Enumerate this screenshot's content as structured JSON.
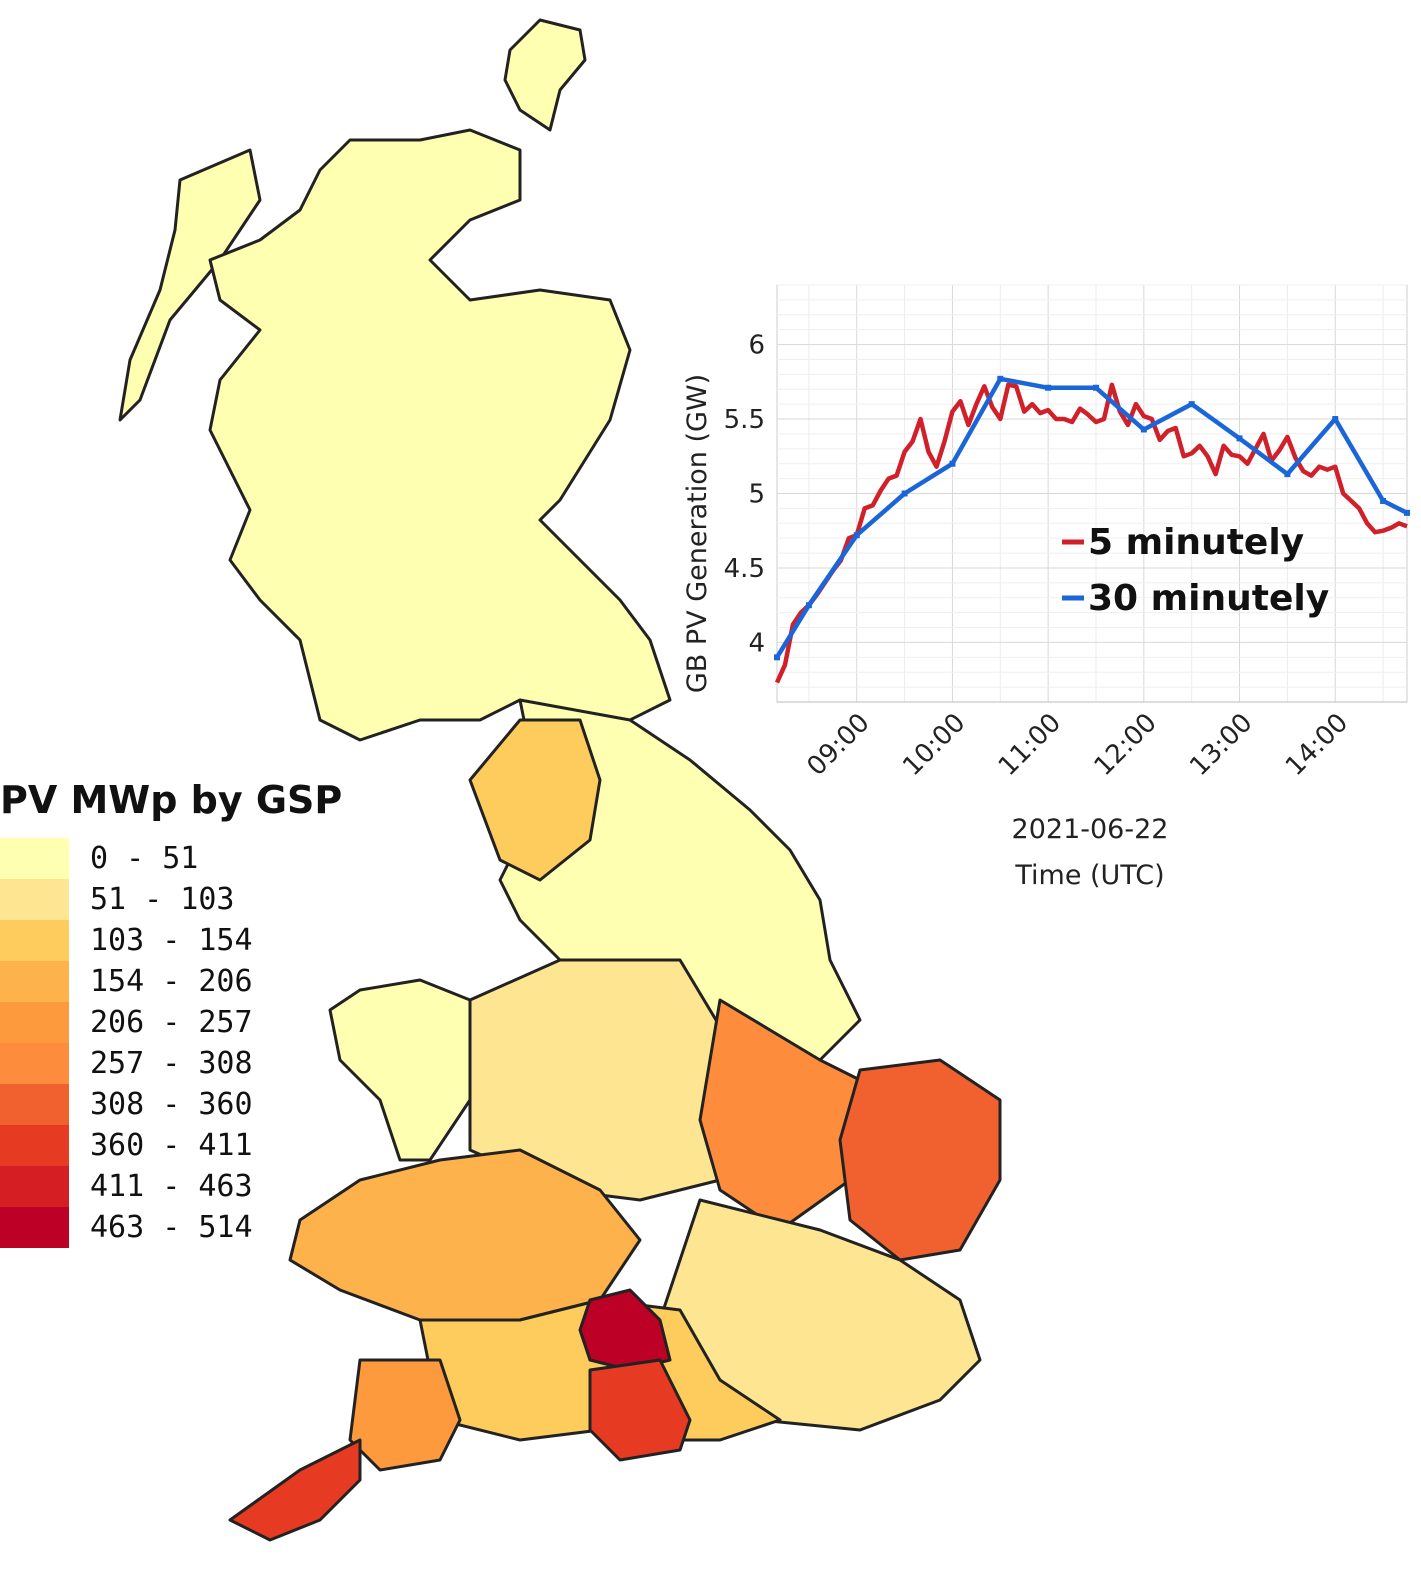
{
  "legend": {
    "title": "PV MWp by GSP",
    "bins": [
      {
        "label": "0 - 51",
        "color": "#ffffb2"
      },
      {
        "label": "51 - 103",
        "color": "#fee592"
      },
      {
        "label": "103 - 154",
        "color": "#fecc5c"
      },
      {
        "label": "154 - 206",
        "color": "#feb24c"
      },
      {
        "label": "206 - 257",
        "color": "#fd9a3e"
      },
      {
        "label": "257 - 308",
        "color": "#fd8d3c"
      },
      {
        "label": "308 - 360",
        "color": "#f16130"
      },
      {
        "label": "360 - 411",
        "color": "#e63a22"
      },
      {
        "label": "411 - 463",
        "color": "#d41e24"
      },
      {
        "label": "463 - 514",
        "color": "#bd0026"
      }
    ]
  },
  "map_regions": [
    {
      "name": "scotland",
      "bin": 0
    },
    {
      "name": "north-england",
      "bin": 0
    },
    {
      "name": "cumbria",
      "bin": 2
    },
    {
      "name": "wales-north",
      "bin": 0
    },
    {
      "name": "midlands",
      "bin": 1
    },
    {
      "name": "east-anglia",
      "bin": 6
    },
    {
      "name": "south-west",
      "bin": 4
    },
    {
      "name": "cornwall",
      "bin": 7
    },
    {
      "name": "wiltshire",
      "bin": 9
    },
    {
      "name": "dorset",
      "bin": 7
    }
  ],
  "chart_data": {
    "type": "line",
    "title": "",
    "xlabel": "Time (UTC)",
    "xlabel_date": "2021-06-22",
    "ylabel": "GB PV Generation (GW)",
    "xlim": [
      "08:10",
      "14:45"
    ],
    "ylim": [
      3.6,
      6.4
    ],
    "x_ticks": [
      "09:00",
      "10:00",
      "11:00",
      "12:00",
      "13:00",
      "14:00"
    ],
    "y_ticks": [
      4,
      4.5,
      5,
      5.5,
      6
    ],
    "y_tick_labels": [
      "4",
      "4.5",
      "5",
      "5.5",
      "6"
    ],
    "grid": true,
    "legend_position": "lower-right",
    "series": [
      {
        "name": "5 minutely",
        "color": "#d0202a",
        "x": [
          "08:10",
          "08:15",
          "08:20",
          "08:25",
          "08:30",
          "08:35",
          "08:40",
          "08:45",
          "08:50",
          "08:55",
          "09:00",
          "09:05",
          "09:10",
          "09:15",
          "09:20",
          "09:25",
          "09:30",
          "09:35",
          "09:40",
          "09:45",
          "09:50",
          "09:55",
          "10:00",
          "10:05",
          "10:10",
          "10:15",
          "10:20",
          "10:25",
          "10:30",
          "10:35",
          "10:40",
          "10:45",
          "10:50",
          "10:55",
          "11:00",
          "11:05",
          "11:10",
          "11:15",
          "11:20",
          "11:25",
          "11:30",
          "11:35",
          "11:40",
          "11:45",
          "11:50",
          "11:55",
          "12:00",
          "12:05",
          "12:10",
          "12:15",
          "12:20",
          "12:25",
          "12:30",
          "12:35",
          "12:40",
          "12:45",
          "12:50",
          "12:55",
          "13:00",
          "13:05",
          "13:10",
          "13:15",
          "13:20",
          "13:25",
          "13:30",
          "13:35",
          "13:40",
          "13:45",
          "13:50",
          "13:55",
          "14:00",
          "14:05",
          "14:10",
          "14:15",
          "14:20",
          "14:25",
          "14:30",
          "14:35",
          "14:40",
          "14:45"
        ],
        "values": [
          3.73,
          3.85,
          4.12,
          4.2,
          4.25,
          4.32,
          4.4,
          4.48,
          4.55,
          4.7,
          4.72,
          4.9,
          4.92,
          5.02,
          5.1,
          5.12,
          5.28,
          5.35,
          5.5,
          5.28,
          5.18,
          5.35,
          5.55,
          5.62,
          5.46,
          5.6,
          5.72,
          5.58,
          5.5,
          5.73,
          5.72,
          5.55,
          5.6,
          5.54,
          5.56,
          5.5,
          5.5,
          5.48,
          5.57,
          5.53,
          5.48,
          5.5,
          5.73,
          5.55,
          5.46,
          5.6,
          5.52,
          5.5,
          5.36,
          5.42,
          5.44,
          5.25,
          5.27,
          5.32,
          5.25,
          5.13,
          5.32,
          5.26,
          5.25,
          5.2,
          5.3,
          5.4,
          5.22,
          5.29,
          5.38,
          5.24,
          5.15,
          5.12,
          5.18,
          5.16,
          5.18,
          5.0,
          4.95,
          4.9,
          4.8,
          4.74,
          4.75,
          4.77,
          4.8,
          4.78
        ]
      },
      {
        "name": "30 minutely",
        "color": "#1a66d8",
        "x": [
          "08:10",
          "08:30",
          "09:00",
          "09:30",
          "10:00",
          "10:30",
          "11:00",
          "11:30",
          "12:00",
          "12:30",
          "13:00",
          "13:30",
          "14:00",
          "14:30",
          "14:45"
        ],
        "values": [
          3.9,
          4.25,
          4.72,
          5.0,
          5.2,
          5.77,
          5.71,
          5.71,
          5.43,
          5.6,
          5.37,
          5.13,
          5.5,
          4.95,
          4.87
        ]
      }
    ]
  }
}
